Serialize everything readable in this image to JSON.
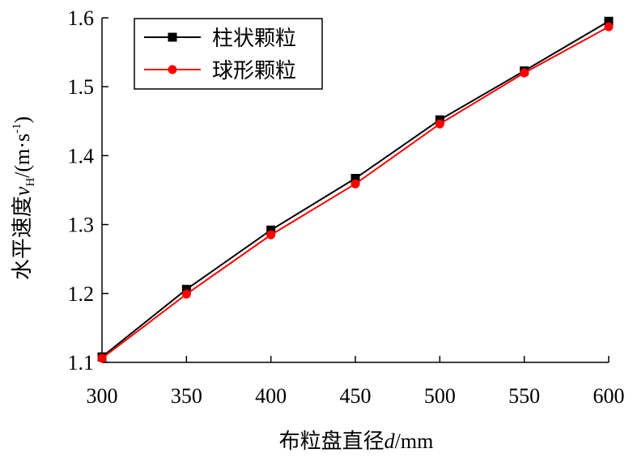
{
  "chart_data": {
    "type": "line",
    "x": [
      300,
      350,
      400,
      450,
      500,
      550,
      600
    ],
    "xlim": [
      300,
      600
    ],
    "ylim": [
      1.1,
      1.6
    ],
    "xticks": [
      "300",
      "350",
      "400",
      "450",
      "500",
      "550",
      "600"
    ],
    "yticks": [
      "1.1",
      "1.2",
      "1.3",
      "1.4",
      "1.5",
      "1.6"
    ],
    "xlabel": {
      "prefix": "布粒盘直径",
      "var": "d",
      "unit": "/mm"
    },
    "ylabel": {
      "prefix": "水平速度",
      "var": "v",
      "sub": "H",
      "unit_a": "/(m·s",
      "unit_sup": "-1",
      "unit_b": ")"
    },
    "grid": false,
    "legend_position": "top-left",
    "series": [
      {
        "name": "柱状颗粒",
        "color": "#000000",
        "marker": "square",
        "values": [
          1.108,
          1.206,
          1.292,
          1.367,
          1.452,
          1.523,
          1.595
        ]
      },
      {
        "name": "球形颗粒",
        "color": "#ff0000",
        "marker": "circle",
        "values": [
          1.106,
          1.199,
          1.285,
          1.359,
          1.446,
          1.52,
          1.587
        ]
      }
    ]
  }
}
